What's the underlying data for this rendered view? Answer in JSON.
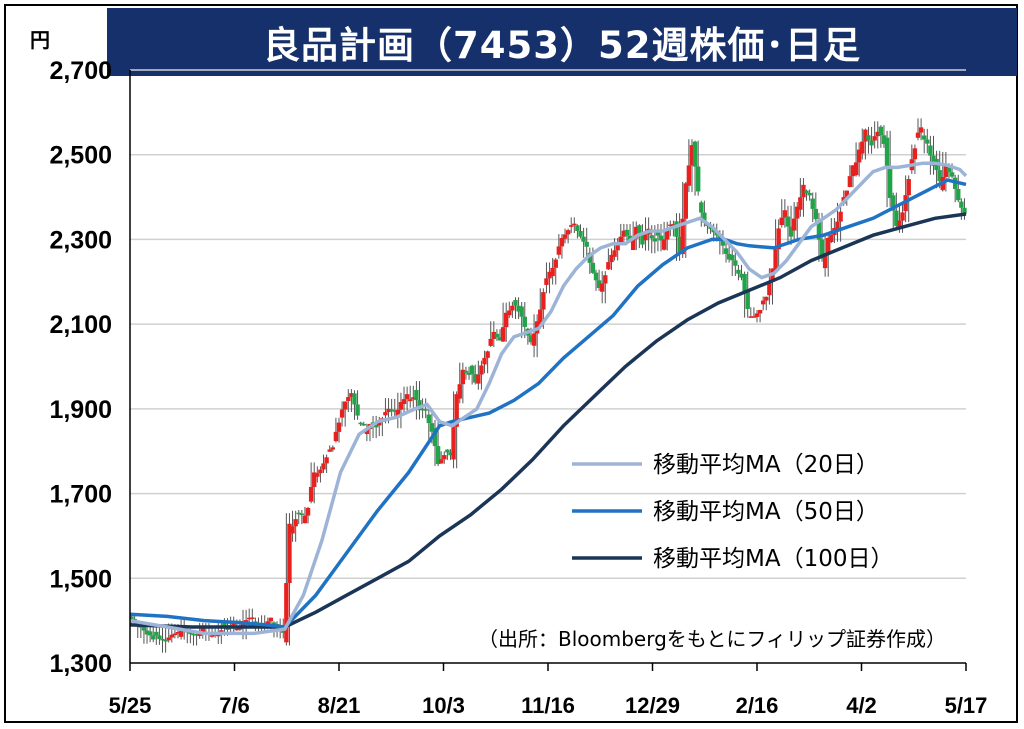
{
  "unit_label": "円",
  "colors": {
    "title_bg": "#16306b",
    "up": "#e8201e",
    "down": "#22a34a",
    "ma20": "#9db4d6",
    "ma50": "#1f72c4",
    "ma100": "#1b3557",
    "grid": "#d0d0d0"
  },
  "chart_data": {
    "type": "candlestick",
    "title": "良品計画（7453）52週株価･日足",
    "ylim": [
      1300,
      2700
    ],
    "yticks": [
      "1,300",
      "1,500",
      "1,700",
      "1,900",
      "2,100",
      "2,300",
      "2,500",
      "2,700"
    ],
    "ytick_values": [
      1300,
      1500,
      1700,
      1900,
      2100,
      2300,
      2500,
      2700
    ],
    "xticks": [
      "5/25",
      "7/6",
      "8/21",
      "10/3",
      "11/16",
      "12/29",
      "2/16",
      "4/2",
      "5/17"
    ],
    "grid": true,
    "legend_position": "right-center",
    "legend": [
      "移動平均MA（20日）",
      "移動平均MA（50日）",
      "移動平均MA（100日）"
    ],
    "source": "（出所：Bloombergをもとにフィリップ証券作成）",
    "close_path": [
      [
        0,
        1410
      ],
      [
        3,
        1370
      ],
      [
        6,
        1365
      ],
      [
        9,
        1375
      ],
      [
        12,
        1370
      ],
      [
        15,
        1380
      ],
      [
        18,
        1390
      ],
      [
        21,
        1400
      ],
      [
        24,
        1390
      ],
      [
        25,
        1360
      ],
      [
        26,
        1620
      ],
      [
        27,
        1650
      ],
      [
        28,
        1640
      ],
      [
        29,
        1680
      ],
      [
        30,
        1740
      ],
      [
        31,
        1770
      ],
      [
        32,
        1790
      ],
      [
        33,
        1820
      ],
      [
        34,
        1880
      ],
      [
        35,
        1920
      ],
      [
        36,
        1930
      ],
      [
        37,
        1880
      ],
      [
        38,
        1850
      ],
      [
        39,
        1870
      ],
      [
        40,
        1860
      ],
      [
        41,
        1880
      ],
      [
        42,
        1900
      ],
      [
        43,
        1880
      ],
      [
        44,
        1910
      ],
      [
        45,
        1920
      ],
      [
        46,
        1940
      ],
      [
        47,
        1900
      ],
      [
        48,
        1900
      ],
      [
        49,
        1850
      ],
      [
        50,
        1780
      ],
      [
        51,
        1790
      ],
      [
        52,
        1790
      ],
      [
        53,
        1930
      ],
      [
        54,
        1980
      ],
      [
        55,
        1990
      ],
      [
        56,
        1960
      ],
      [
        57,
        2010
      ],
      [
        58,
        2050
      ],
      [
        59,
        2080
      ],
      [
        60,
        2070
      ],
      [
        61,
        2120
      ],
      [
        62,
        2150
      ],
      [
        63,
        2130
      ],
      [
        64,
        2080
      ],
      [
        65,
        2060
      ],
      [
        66,
        2100
      ],
      [
        67,
        2180
      ],
      [
        68,
        2220
      ],
      [
        69,
        2250
      ],
      [
        70,
        2300
      ],
      [
        71,
        2320
      ],
      [
        72,
        2330
      ],
      [
        73,
        2310
      ],
      [
        74,
        2270
      ],
      [
        75,
        2210
      ],
      [
        76,
        2190
      ],
      [
        77,
        2220
      ],
      [
        78,
        2260
      ],
      [
        79,
        2300
      ],
      [
        80,
        2320
      ],
      [
        81,
        2290
      ],
      [
        82,
        2330
      ],
      [
        83,
        2300
      ],
      [
        84,
        2320
      ],
      [
        85,
        2310
      ],
      [
        86,
        2290
      ],
      [
        87,
        2330
      ],
      [
        88,
        2340
      ],
      [
        89,
        2280
      ],
      [
        90,
        2440
      ],
      [
        91,
        2530
      ],
      [
        92,
        2400
      ],
      [
        93,
        2350
      ],
      [
        94,
        2330
      ],
      [
        95,
        2300
      ],
      [
        96,
        2280
      ],
      [
        97,
        2260
      ],
      [
        98,
        2240
      ],
      [
        99,
        2210
      ],
      [
        100,
        2130
      ],
      [
        101,
        2120
      ],
      [
        102,
        2140
      ],
      [
        103,
        2170
      ],
      [
        104,
        2230
      ],
      [
        105,
        2320
      ],
      [
        106,
        2360
      ],
      [
        107,
        2310
      ],
      [
        108,
        2380
      ],
      [
        109,
        2420
      ],
      [
        110,
        2400
      ],
      [
        111,
        2360
      ],
      [
        112,
        2240
      ],
      [
        113,
        2290
      ],
      [
        114,
        2330
      ],
      [
        115,
        2380
      ],
      [
        116,
        2430
      ],
      [
        117,
        2460
      ],
      [
        118,
        2510
      ],
      [
        119,
        2560
      ],
      [
        120,
        2520
      ],
      [
        121,
        2560
      ],
      [
        122,
        2540
      ],
      [
        123,
        2390
      ],
      [
        124,
        2320
      ],
      [
        125,
        2370
      ],
      [
        126,
        2450
      ],
      [
        127,
        2530
      ],
      [
        128,
        2550
      ],
      [
        129,
        2520
      ],
      [
        130,
        2480
      ],
      [
        131,
        2430
      ],
      [
        132,
        2470
      ],
      [
        133,
        2450
      ],
      [
        134,
        2400
      ],
      [
        135,
        2370
      ]
    ],
    "ma20_path": [
      [
        0,
        1400
      ],
      [
        12,
        1370
      ],
      [
        20,
        1370
      ],
      [
        25,
        1380
      ],
      [
        28,
        1460
      ],
      [
        31,
        1590
      ],
      [
        34,
        1750
      ],
      [
        37,
        1840
      ],
      [
        40,
        1870
      ],
      [
        43,
        1880
      ],
      [
        46,
        1900
      ],
      [
        48,
        1910
      ],
      [
        50,
        1870
      ],
      [
        52,
        1860
      ],
      [
        54,
        1880
      ],
      [
        56,
        1900
      ],
      [
        58,
        1960
      ],
      [
        60,
        2030
      ],
      [
        62,
        2070
      ],
      [
        64,
        2080
      ],
      [
        66,
        2090
      ],
      [
        68,
        2130
      ],
      [
        70,
        2190
      ],
      [
        72,
        2230
      ],
      [
        74,
        2260
      ],
      [
        76,
        2280
      ],
      [
        78,
        2290
      ],
      [
        80,
        2290
      ],
      [
        82,
        2310
      ],
      [
        84,
        2320
      ],
      [
        86,
        2320
      ],
      [
        88,
        2330
      ],
      [
        90,
        2340
      ],
      [
        92,
        2350
      ],
      [
        94,
        2330
      ],
      [
        96,
        2300
      ],
      [
        98,
        2270
      ],
      [
        100,
        2230
      ],
      [
        102,
        2210
      ],
      [
        104,
        2220
      ],
      [
        106,
        2250
      ],
      [
        108,
        2290
      ],
      [
        110,
        2330
      ],
      [
        112,
        2350
      ],
      [
        114,
        2370
      ],
      [
        116,
        2400
      ],
      [
        118,
        2430
      ],
      [
        120,
        2460
      ],
      [
        122,
        2470
      ],
      [
        124,
        2470
      ],
      [
        126,
        2475
      ],
      [
        128,
        2480
      ],
      [
        130,
        2480
      ],
      [
        132,
        2475
      ],
      [
        134,
        2465
      ],
      [
        135,
        2450
      ]
    ],
    "ma50_path": [
      [
        0,
        1415
      ],
      [
        6,
        1410
      ],
      [
        12,
        1400
      ],
      [
        18,
        1395
      ],
      [
        22,
        1390
      ],
      [
        25,
        1385
      ],
      [
        30,
        1460
      ],
      [
        35,
        1560
      ],
      [
        40,
        1660
      ],
      [
        45,
        1750
      ],
      [
        50,
        1860
      ],
      [
        52,
        1870
      ],
      [
        55,
        1880
      ],
      [
        58,
        1890
      ],
      [
        62,
        1920
      ],
      [
        66,
        1960
      ],
      [
        70,
        2020
      ],
      [
        74,
        2070
      ],
      [
        78,
        2120
      ],
      [
        82,
        2190
      ],
      [
        86,
        2240
      ],
      [
        90,
        2280
      ],
      [
        94,
        2300
      ],
      [
        96,
        2300
      ],
      [
        98,
        2290
      ],
      [
        100,
        2285
      ],
      [
        104,
        2280
      ],
      [
        108,
        2300
      ],
      [
        112,
        2310
      ],
      [
        116,
        2330
      ],
      [
        120,
        2350
      ],
      [
        124,
        2380
      ],
      [
        128,
        2410
      ],
      [
        132,
        2440
      ],
      [
        135,
        2430
      ]
    ],
    "ma100_path": [
      [
        0,
        1390
      ],
      [
        10,
        1385
      ],
      [
        20,
        1385
      ],
      [
        25,
        1385
      ],
      [
        30,
        1420
      ],
      [
        35,
        1460
      ],
      [
        40,
        1500
      ],
      [
        45,
        1540
      ],
      [
        50,
        1600
      ],
      [
        55,
        1650
      ],
      [
        60,
        1710
      ],
      [
        65,
        1780
      ],
      [
        70,
        1860
      ],
      [
        75,
        1930
      ],
      [
        80,
        2000
      ],
      [
        85,
        2060
      ],
      [
        90,
        2110
      ],
      [
        95,
        2150
      ],
      [
        100,
        2180
      ],
      [
        105,
        2210
      ],
      [
        110,
        2250
      ],
      [
        115,
        2280
      ],
      [
        120,
        2310
      ],
      [
        125,
        2330
      ],
      [
        130,
        2350
      ],
      [
        135,
        2360
      ]
    ]
  }
}
